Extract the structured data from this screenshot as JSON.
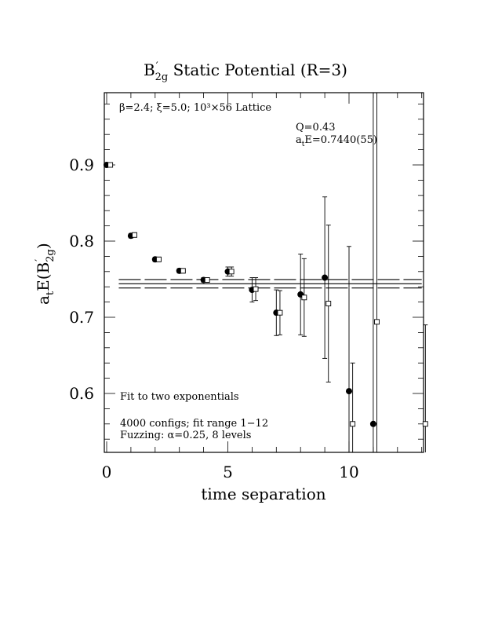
{
  "chart_data": {
    "type": "scatter",
    "title_main": "B",
    "title_sub": "2g",
    "title_rest": " Static Potential (R=3)",
    "xlabel": "time separation",
    "ylabel_main": "a",
    "ylabel_sub": "t",
    "ylabel_mid": "E(B",
    "ylabel_sub2": "2g",
    "ylabel_end": ")",
    "xlim": [
      0,
      13
    ],
    "ylim": [
      0.52,
      1.0
    ],
    "x_ticks": [
      0,
      5,
      10
    ],
    "y_ticks": [
      0.6,
      0.7,
      0.8,
      0.9
    ],
    "y_tick_labels": [
      "0.6",
      "0.7",
      "0.8",
      "0.9"
    ],
    "x_tick_labels": [
      "0",
      "5",
      "10"
    ],
    "annotations": {
      "lattice": "β=2.4; ξ=5.0; 10³×56 Lattice",
      "q": "Q=0.43",
      "energy_pre": "a",
      "energy_sub": "t",
      "energy_post": "E=0.7440(55)",
      "fit_type": "Fit to two exponentials",
      "configs": "4000 configs; fit range 1−12",
      "fuzzing": "Fuzzing: α=0.25, 8 levels"
    },
    "fit": {
      "value": 0.744,
      "error": 0.0055,
      "x_range": [
        0.5,
        13
      ]
    },
    "series": [
      {
        "marker": "filled-circle",
        "points": [
          {
            "x": 0,
            "y": 0.9,
            "err": 0.002
          },
          {
            "x": 1,
            "y": 0.807,
            "err": 0.003
          },
          {
            "x": 2,
            "y": 0.776,
            "err": 0.003
          },
          {
            "x": 3,
            "y": 0.761,
            "err": 0.003
          },
          {
            "x": 4,
            "y": 0.749,
            "err": 0.003
          },
          {
            "x": 5,
            "y": 0.76,
            "err": 0.006
          },
          {
            "x": 6,
            "y": 0.736,
            "err": 0.016
          },
          {
            "x": 7,
            "y": 0.706,
            "err": 0.03
          },
          {
            "x": 8,
            "y": 0.73,
            "err": 0.053
          },
          {
            "x": 9,
            "y": 0.752,
            "err": 0.106
          },
          {
            "x": 10,
            "y": 0.603,
            "err": 0.19
          },
          {
            "x": 11,
            "y": 0.56,
            "err": 0.5
          }
        ]
      },
      {
        "marker": "open-square",
        "points": [
          {
            "x": 0.15,
            "y": 0.9,
            "err": 0.002
          },
          {
            "x": 1.15,
            "y": 0.808,
            "err": 0.003
          },
          {
            "x": 2.15,
            "y": 0.776,
            "err": 0.003
          },
          {
            "x": 3.15,
            "y": 0.761,
            "err": 0.003
          },
          {
            "x": 4.15,
            "y": 0.749,
            "err": 0.003
          },
          {
            "x": 5.15,
            "y": 0.76,
            "err": 0.006
          },
          {
            "x": 6.15,
            "y": 0.737,
            "err": 0.015
          },
          {
            "x": 7.15,
            "y": 0.706,
            "err": 0.029
          },
          {
            "x": 8.15,
            "y": 0.726,
            "err": 0.051
          },
          {
            "x": 9.15,
            "y": 0.718,
            "err": 0.103
          },
          {
            "x": 10.15,
            "y": 0.56,
            "err": 0.08
          },
          {
            "x": 11.15,
            "y": 0.694,
            "err": 0.5
          },
          {
            "x": 13.15,
            "y": 0.56,
            "err": 0.13
          }
        ]
      }
    ]
  }
}
